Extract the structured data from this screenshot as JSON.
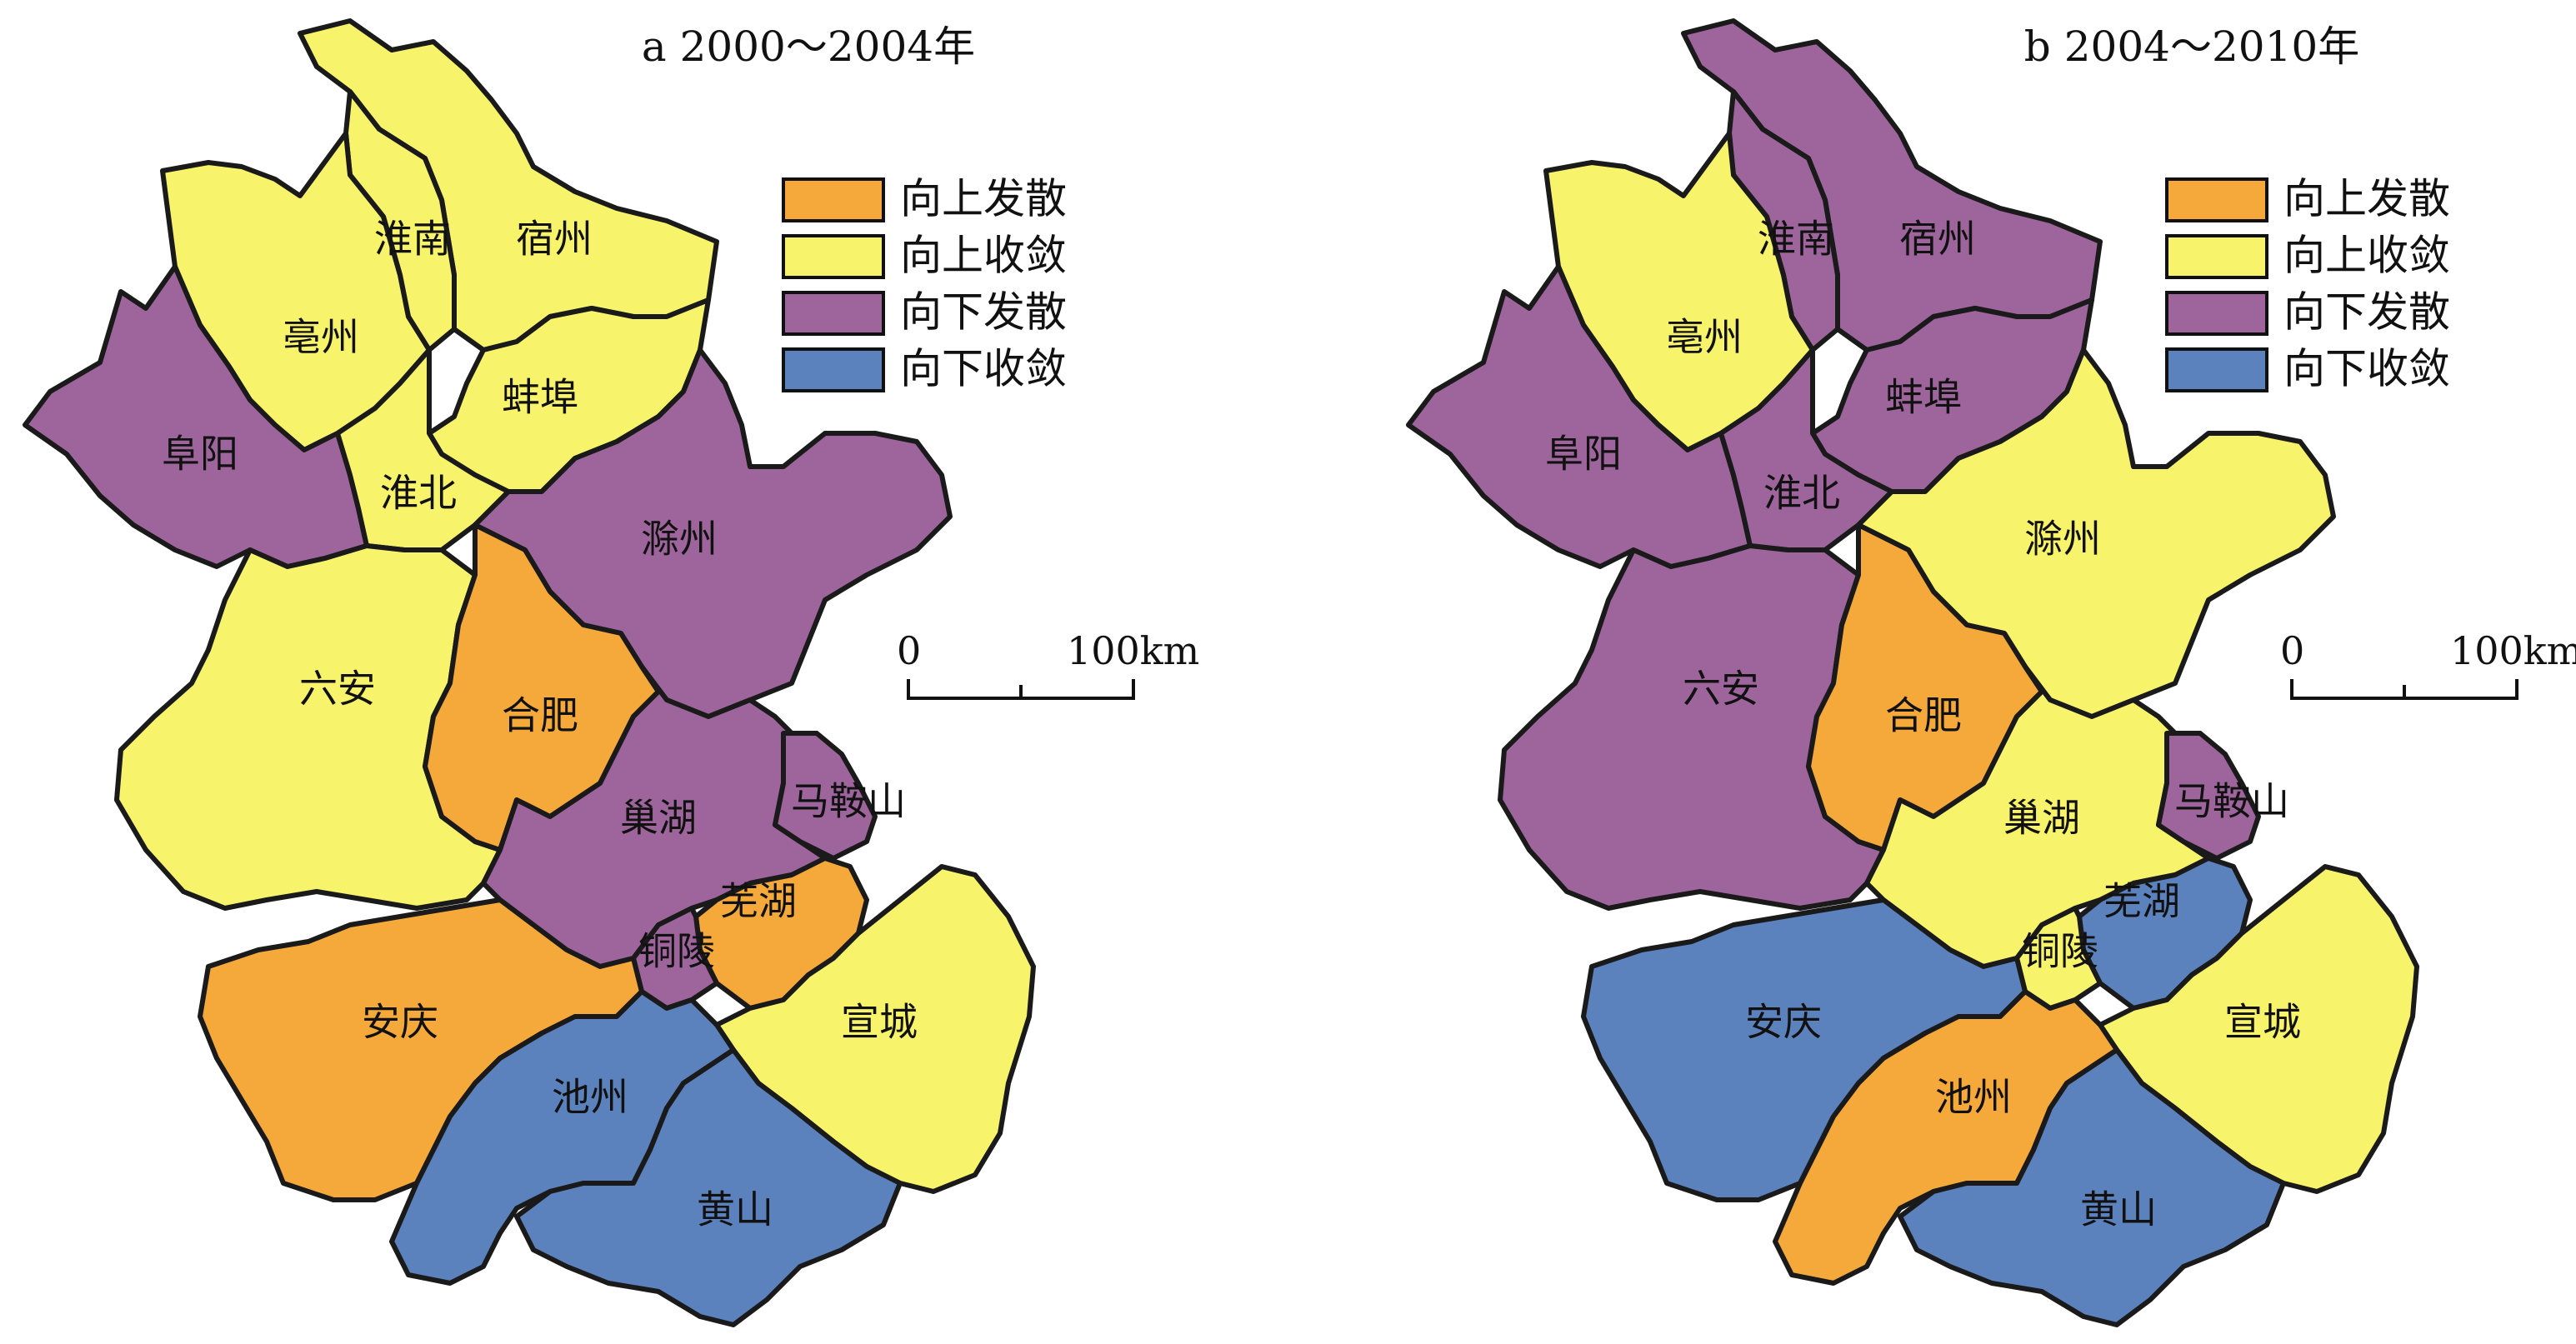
{
  "colors": {
    "up_diverge": "#F5A93A",
    "up_converge": "#F7F36A",
    "down_diverge": "#9E659C",
    "down_converge": "#5C82BE"
  },
  "categories": {
    "up_diverge": "向上发散",
    "up_converge": "向上收敛",
    "down_diverge": "向下发散",
    "down_converge": "向下收敛"
  },
  "legend_order": [
    "up_diverge",
    "up_converge",
    "down_diverge",
    "down_converge"
  ],
  "scale": {
    "zero": "0",
    "end": "100km"
  },
  "regions": [
    {
      "id": "suzhou",
      "name": "宿州"
    },
    {
      "id": "huainan",
      "name": "淮南"
    },
    {
      "id": "bozhou",
      "name": "亳州"
    },
    {
      "id": "bengbu",
      "name": "蚌埠"
    },
    {
      "id": "fuyang",
      "name": "阜阳"
    },
    {
      "id": "huaibei",
      "name": "淮北"
    },
    {
      "id": "chuzhou",
      "name": "滁州"
    },
    {
      "id": "luan",
      "name": "六安"
    },
    {
      "id": "hefei",
      "name": "合肥"
    },
    {
      "id": "chaohu",
      "name": "巢湖"
    },
    {
      "id": "maanshan",
      "name": "马鞍山"
    },
    {
      "id": "wuhu",
      "name": "芜湖"
    },
    {
      "id": "tongling",
      "name": "铜陵"
    },
    {
      "id": "anqing",
      "name": "安庆"
    },
    {
      "id": "xuancheng",
      "name": "宣城"
    },
    {
      "id": "chizhou",
      "name": "池州"
    },
    {
      "id": "huangshan",
      "name": "黄山"
    }
  ],
  "maps": [
    {
      "title": "a  2000～2004年",
      "classes": {
        "suzhou": "up_converge",
        "huainan": "up_converge",
        "bozhou": "up_converge",
        "bengbu": "up_converge",
        "fuyang": "down_diverge",
        "huaibei": "up_converge",
        "chuzhou": "down_diverge",
        "luan": "up_converge",
        "hefei": "up_diverge",
        "chaohu": "down_diverge",
        "maanshan": "down_diverge",
        "wuhu": "up_diverge",
        "tongling": "down_diverge",
        "anqing": "up_diverge",
        "xuancheng": "up_converge",
        "chizhou": "down_converge",
        "huangshan": "down_converge"
      }
    },
    {
      "title": "b  2004～2010年",
      "classes": {
        "suzhou": "down_diverge",
        "huainan": "down_diverge",
        "bozhou": "up_converge",
        "bengbu": "down_diverge",
        "fuyang": "down_diverge",
        "huaibei": "down_diverge",
        "chuzhou": "up_converge",
        "luan": "down_diverge",
        "hefei": "up_diverge",
        "chaohu": "up_converge",
        "maanshan": "down_diverge",
        "wuhu": "down_converge",
        "tongling": "up_converge",
        "anqing": "down_converge",
        "xuancheng": "up_converge",
        "chizhou": "up_diverge",
        "huangshan": "down_converge"
      }
    }
  ]
}
